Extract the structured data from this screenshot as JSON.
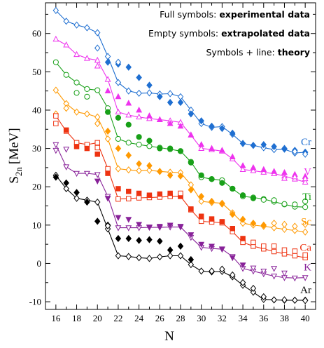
{
  "chart_data": {
    "type": "line",
    "xlabel": "N",
    "ylabel_main": "S",
    "ylabel_sub": "2n",
    "ylabel_unit": "[MeV]",
    "xlim": [
      15,
      41
    ],
    "ylim": [
      -12,
      68
    ],
    "xticks": [
      16,
      18,
      20,
      22,
      24,
      26,
      28,
      30,
      32,
      34,
      36,
      38,
      40
    ],
    "yticks": [
      -10,
      0,
      10,
      20,
      30,
      40,
      50,
      60
    ],
    "annotations": [
      {
        "prefix": "Full symbols: ",
        "bold": "experimental data"
      },
      {
        "prefix": "Empty symbols: ",
        "bold": "extrapolated data"
      },
      {
        "prefix": "Symbols + line: ",
        "bold": "theory"
      }
    ],
    "series": [
      {
        "name": "Cr",
        "color": "#1f6fd1",
        "marker": "diamond",
        "theory": {
          "x": [
            16,
            17,
            18,
            19,
            20,
            21,
            22,
            23,
            24,
            25,
            26,
            27,
            28,
            29,
            30,
            31,
            32,
            33,
            34,
            35,
            36,
            37,
            38,
            39,
            40
          ],
          "y": [
            66,
            63.2,
            62.2,
            61.5,
            60.2,
            54,
            47.2,
            45,
            44.4,
            44.5,
            44.2,
            44.3,
            43.5,
            40,
            36.5,
            35.5,
            35.7,
            33.7,
            31.3,
            30.8,
            30.2,
            29.7,
            29.8,
            28.8,
            29
          ]
        },
        "exp": {
          "x": [
            21,
            22,
            23,
            24,
            25,
            26,
            27,
            28,
            29,
            30,
            31,
            32,
            33,
            34,
            35,
            36,
            37,
            38,
            39,
            40
          ],
          "y": [
            52.5,
            52,
            51.2,
            48.5,
            46.5,
            43.5,
            42,
            42,
            39,
            37.2,
            35.8,
            35.2,
            34,
            31.3,
            30.8,
            31,
            30.5,
            30,
            29.5,
            29
          ]
        },
        "extrap": {
          "x": [
            20,
            22,
            39,
            40
          ],
          "y": [
            56.2,
            52.5,
            29.2,
            28.5
          ]
        }
      },
      {
        "name": "V",
        "color": "#ee33ee",
        "marker": "triangle-up",
        "theory": {
          "x": [
            16,
            17,
            18,
            19,
            20,
            21,
            22,
            23,
            24,
            25,
            26,
            27,
            28,
            29,
            30,
            31,
            32,
            33,
            34,
            35,
            36,
            37,
            38,
            39,
            40
          ],
          "y": [
            58.5,
            57,
            54.5,
            53.5,
            53,
            48,
            39.5,
            38.7,
            38.2,
            37.8,
            37.5,
            37.2,
            36.8,
            33.5,
            30,
            29.7,
            29.3,
            27.3,
            24.5,
            24.2,
            23.8,
            23.4,
            22.8,
            22,
            21.2
          ]
        },
        "exp": {
          "x": [
            21,
            22,
            23,
            24,
            25,
            26,
            27,
            28,
            29,
            30,
            31,
            32,
            33,
            34,
            35,
            36,
            37,
            38,
            39,
            40
          ],
          "y": [
            45,
            43.5,
            41.8,
            40,
            38.5,
            37.5,
            36.5,
            35.8,
            33.5,
            31,
            30,
            29.5,
            27.8,
            25.5,
            25,
            24.5,
            24,
            23.7,
            23.2,
            22.7
          ]
        },
        "extrap": {
          "x": [
            20,
            38,
            39,
            40
          ],
          "y": [
            51.5,
            22.2,
            22.6,
            22.1
          ]
        }
      },
      {
        "name": "Ti",
        "color": "#18a018",
        "marker": "circle",
        "theory": {
          "x": [
            16,
            17,
            18,
            19,
            20,
            21,
            22,
            23,
            24,
            25,
            26,
            27,
            28,
            29,
            30,
            31,
            32,
            33,
            34,
            35,
            36,
            37,
            38,
            39,
            40
          ],
          "y": [
            52.5,
            49.2,
            47.2,
            45.5,
            45.2,
            40.5,
            32.5,
            31.5,
            31,
            30.6,
            30.2,
            29.8,
            29.3,
            26.5,
            22.5,
            22,
            21.7,
            19.5,
            17.5,
            17.2,
            16.8,
            16.1,
            15.4,
            14.8,
            14.7
          ]
        },
        "exp": {
          "x": [
            21,
            22,
            23,
            24,
            25,
            26,
            27,
            28,
            29,
            30,
            31,
            32,
            33,
            34,
            35
          ],
          "y": [
            39.5,
            38,
            36.2,
            33,
            32,
            30,
            30,
            29.3,
            26.3,
            23,
            22,
            21,
            19.5,
            17.8,
            17
          ]
        },
        "extrap": {
          "x": [
            18,
            19,
            36,
            37,
            38,
            39,
            40
          ],
          "y": [
            44.5,
            43.5,
            16.6,
            16.5,
            15.5,
            15.4,
            16.2
          ]
        }
      },
      {
        "name": "Sc",
        "color": "#ff9900",
        "marker": "diamond",
        "theory": {
          "x": [
            16,
            17,
            18,
            19,
            20,
            21,
            22,
            23,
            24,
            25,
            26,
            27,
            28,
            29,
            30,
            31,
            32,
            33,
            34,
            35,
            36,
            37,
            38,
            39,
            40
          ],
          "y": [
            45.2,
            41.7,
            39.5,
            39,
            38.2,
            32.5,
            24.7,
            24.4,
            24.2,
            24.3,
            24,
            23.8,
            23.7,
            20.5,
            16.2,
            15.9,
            15.7,
            13.2,
            10.5,
            10,
            9.7,
            9.3,
            8.9,
            8.6,
            8.2
          ]
        },
        "exp": {
          "x": [
            21,
            22,
            23,
            24,
            25,
            26,
            27,
            28,
            29,
            30,
            31,
            32,
            33,
            34,
            35,
            36
          ],
          "y": [
            34.5,
            30,
            28.2,
            26,
            25.5,
            24,
            23,
            22.8,
            19.2,
            17.5,
            16.2,
            15.5,
            12.8,
            11.5,
            10.5,
            10
          ]
        },
        "extrap": {
          "x": [
            16,
            17,
            20,
            37,
            38,
            39,
            40
          ],
          "y": [
            39,
            40.5,
            36.5,
            10.5,
            10.2,
            9.7,
            10.2
          ]
        }
      },
      {
        "name": "Ca",
        "color": "#ee3311",
        "marker": "square",
        "theory": {
          "x": [
            16,
            17,
            18,
            19,
            20,
            21,
            22,
            23,
            24,
            25,
            26,
            27,
            28,
            29,
            30,
            31,
            32,
            33,
            34,
            35,
            36,
            37,
            38,
            39,
            40
          ],
          "y": [
            38.5,
            34.5,
            31.5,
            31,
            31.5,
            24.7,
            16.8,
            16.9,
            17.1,
            17.2,
            17.3,
            17.5,
            17.5,
            14,
            11,
            10.8,
            10.6,
            8.3,
            5.5,
            4.5,
            3.8,
            3.1,
            2.5,
            2,
            1.5
          ]
        },
        "exp": {
          "x": [
            17,
            18,
            19,
            20,
            21,
            22,
            23,
            24,
            25,
            26,
            27,
            28,
            29,
            30,
            31,
            32,
            33,
            34
          ],
          "y": [
            34.8,
            30.5,
            30,
            28.5,
            23.5,
            19.5,
            18.8,
            18.3,
            17.8,
            18.1,
            18.3,
            17.5,
            14.2,
            12.3,
            11.6,
            10.9,
            9.1,
            6.5
          ]
        },
        "extrap": {
          "x": [
            16,
            20,
            28,
            35,
            36,
            37,
            38,
            39,
            40
          ],
          "y": [
            36.5,
            30.2,
            18.3,
            5.5,
            4.5,
            4.5,
            3.5,
            3.2,
            2.2
          ]
        }
      },
      {
        "name": "K",
        "color": "#882299",
        "marker": "triangle-down",
        "theory": {
          "x": [
            16,
            17,
            18,
            19,
            20,
            21,
            22,
            23,
            24,
            25,
            26,
            27,
            28,
            29,
            30,
            31,
            32,
            33,
            34,
            35,
            36,
            37,
            38,
            39,
            40
          ],
          "y": [
            31,
            25.2,
            23.5,
            23.5,
            23.2,
            17.5,
            9.3,
            9.3,
            9.3,
            9.4,
            9.4,
            9.5,
            9.5,
            6.8,
            4.2,
            3.9,
            3.7,
            1.8,
            -1.3,
            -2,
            -2.7,
            -3.3,
            -3.7,
            -3.8,
            -3.7
          ]
        },
        "exp": {
          "x": [
            20,
            21,
            22,
            23,
            24,
            25,
            26,
            27,
            28,
            29,
            30,
            31,
            32,
            33,
            34
          ],
          "y": [
            21.5,
            17,
            12,
            11.5,
            10.2,
            9.5,
            9.7,
            10,
            9.7,
            7.5,
            5,
            4.5,
            3.8,
            1.5,
            -0.4
          ]
        },
        "extrap": {
          "x": [
            16,
            17,
            35,
            36,
            37,
            38
          ],
          "y": [
            29.5,
            29.8,
            -1.2,
            -2,
            -1.3,
            -2.5
          ]
        }
      },
      {
        "name": "Ar",
        "color": "#000000",
        "marker": "diamond",
        "theory": {
          "x": [
            16,
            17,
            18,
            19,
            20,
            21,
            22,
            23,
            24,
            25,
            26,
            27,
            28,
            29,
            30,
            31,
            32,
            33,
            34,
            35,
            36,
            37,
            38,
            39,
            40
          ],
          "y": [
            23,
            19.5,
            17,
            16.5,
            16,
            9,
            2,
            1.8,
            1.5,
            1.3,
            1.7,
            2,
            2,
            -0.3,
            -2,
            -2.2,
            -2.1,
            -3.5,
            -5.7,
            -7.5,
            -9.4,
            -9.5,
            -9.6,
            -9.6,
            -9.6
          ]
        },
        "exp": {
          "x": [
            16,
            17,
            18,
            19,
            20,
            21,
            22,
            23,
            24,
            25,
            26,
            27,
            28,
            29
          ],
          "y": [
            22.5,
            21,
            18.5,
            16,
            11,
            10,
            6.5,
            6.5,
            6,
            6.2,
            5.8,
            3.5,
            4.5,
            1
          ]
        },
        "extrap": {
          "x": [
            21,
            31,
            32,
            33,
            34,
            35,
            36,
            37,
            38,
            39,
            40
          ],
          "y": [
            9.8,
            -2,
            -1.5,
            -3,
            -5,
            -6.5,
            -8.7,
            -9.5,
            -9.5,
            -9.6,
            -9.7
          ]
        }
      }
    ]
  }
}
